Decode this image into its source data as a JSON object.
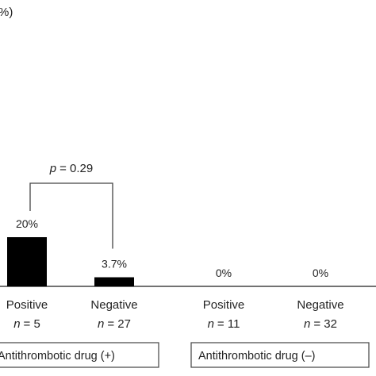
{
  "chart_data": {
    "type": "bar",
    "title": "",
    "xlabel": "",
    "ylabel_fragment": "%)",
    "ylim": [
      0,
      100
    ],
    "categories": [
      {
        "label": "Positive",
        "n_prefix": "n",
        "n_value": "= 5",
        "value": 20,
        "value_label": "20%"
      },
      {
        "label": "Negative",
        "n_prefix": "n",
        "n_value": "= 27",
        "value": 3.7,
        "value_label": "3.7%"
      },
      {
        "label": "Positive",
        "n_prefix": "n",
        "n_value": "= 11",
        "value": 0,
        "value_label": "0%"
      },
      {
        "label": "Negative",
        "n_prefix": "n",
        "n_value": "= 32",
        "value": 0,
        "value_label": "0%"
      }
    ],
    "groups": [
      {
        "label": "Antithrombotic drug (+)"
      },
      {
        "label": "Antithrombotic drug (–)"
      }
    ],
    "annotation": {
      "p_symbol": "p",
      "p_text": "= 0.29",
      "between": [
        0,
        1
      ]
    },
    "colors": {
      "bar": "#000000",
      "axis": "#444444",
      "text": "#222222"
    }
  }
}
